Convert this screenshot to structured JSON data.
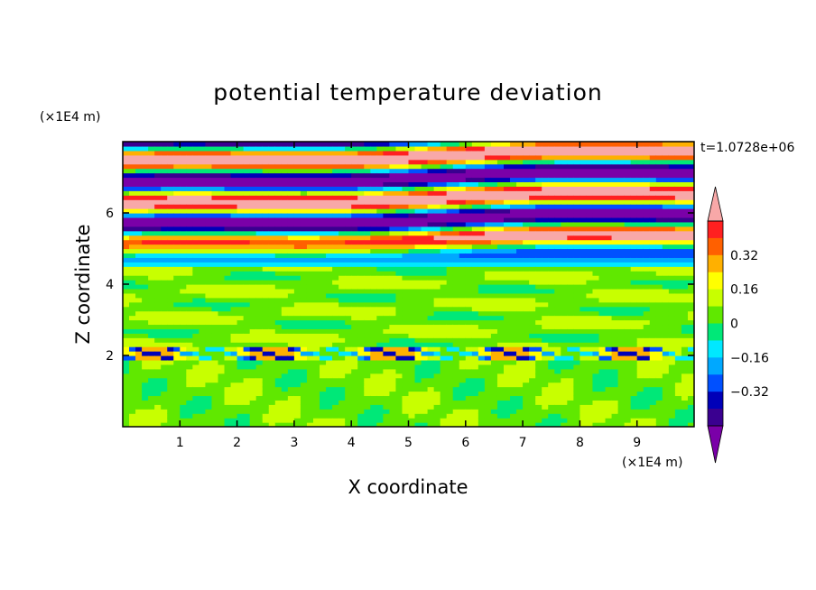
{
  "chart_data": {
    "type": "heatmap",
    "title": "potential temperature deviation",
    "xlabel": "X coordinate",
    "ylabel": "Z coordinate",
    "x_unit": "(×1E4 m)",
    "y_unit": "(×1E4 m)",
    "time_label": "t=1.0728e+06",
    "xlim": [
      0,
      10
    ],
    "ylim": [
      0,
      8
    ],
    "x_ticks": [
      "1",
      "2",
      "3",
      "4",
      "5",
      "6",
      "7",
      "8",
      "9"
    ],
    "y_ticks": [
      "2",
      "4",
      "6"
    ],
    "colorbar": {
      "levels": [
        -0.48,
        -0.4,
        -0.32,
        -0.24,
        -0.16,
        -0.08,
        0,
        0.08,
        0.16,
        0.24,
        0.32,
        0.4,
        0.48
      ],
      "tick_labels": [
        "0.32",
        "0.16",
        "0",
        "−0.16",
        "−0.32"
      ],
      "colors": [
        "#7a00a8",
        "#3a0090",
        "#0000b8",
        "#0050ff",
        "#00a8ff",
        "#00e8ff",
        "#00e878",
        "#60e800",
        "#c8ff00",
        "#ffff00",
        "#ffb000",
        "#ff6000",
        "#ff2020",
        "#f8a8a8"
      ]
    },
    "field_description_layers": [
      {
        "z": 0.5,
        "mean": 0.04
      },
      {
        "z": 1.5,
        "mean": 0.05
      },
      {
        "z": 2.05,
        "mean": -0.2
      },
      {
        "z": 3.0,
        "mean": 0.06
      },
      {
        "z": 4.0,
        "mean": 0.05
      },
      {
        "z": 4.9,
        "mean": -0.1
      },
      {
        "z": 5.4,
        "mean": -0.45
      },
      {
        "z": 6.0,
        "mean": 0.45
      },
      {
        "z": 6.5,
        "mean": -0.45
      },
      {
        "z": 7.1,
        "mean": 0.45
      },
      {
        "z": 7.6,
        "mean": -0.45
      }
    ]
  }
}
